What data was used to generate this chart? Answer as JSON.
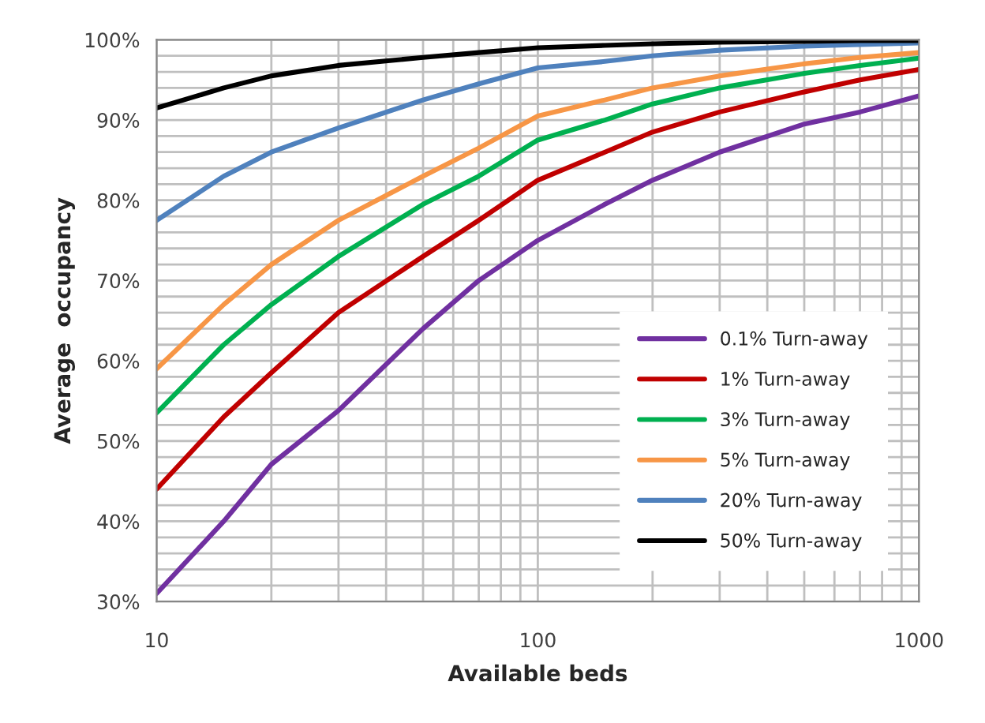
{
  "chart_data": {
    "type": "line",
    "xlabel": "Available beds",
    "ylabel": "Average  occupancy",
    "log": "x",
    "x": [
      10,
      15,
      20,
      30,
      50,
      70,
      100,
      150,
      200,
      300,
      500,
      700,
      1000
    ],
    "series": [
      {
        "name": "0.1% Turn-away",
        "color": "#7030a0",
        "values": [
          31,
          40,
          47.1,
          53.8,
          64,
          70,
          75,
          79.5,
          82.5,
          86,
          89.5,
          91,
          93
        ]
      },
      {
        "name": "1% Turn-away",
        "color": "#c00000",
        "values": [
          44,
          53,
          58.5,
          66,
          73,
          77.5,
          82.5,
          86,
          88.5,
          91,
          93.5,
          95,
          96.3
        ]
      },
      {
        "name": "3% Turn-away",
        "color": "#00b050",
        "values": [
          53.5,
          62,
          67,
          73,
          79.5,
          83,
          87.5,
          90,
          92,
          94,
          95.8,
          96.8,
          97.7
        ]
      },
      {
        "name": "5% Turn-away",
        "color": "#f79646",
        "values": [
          59,
          67,
          72,
          77.5,
          83,
          86.5,
          90.5,
          92.5,
          94,
          95.5,
          97,
          97.8,
          98.4
        ]
      },
      {
        "name": "20% Turn-away",
        "color": "#4f81bd",
        "values": [
          77.5,
          83,
          86,
          89,
          92.5,
          94.5,
          96.5,
          97.3,
          98,
          98.7,
          99.2,
          99.4,
          99.6
        ]
      },
      {
        "name": "50% Turn-away",
        "color": "#000000",
        "values": [
          91.5,
          94,
          95.5,
          96.8,
          97.8,
          98.4,
          99,
          99.3,
          99.5,
          99.7,
          99.8,
          99.9,
          99.9
        ]
      }
    ],
    "xlim": [
      10,
      1000
    ],
    "ylim": [
      30,
      100
    ],
    "xticks": [
      10,
      {
        "value": 20,
        "label": null
      },
      {
        "value": 30,
        "label": null
      },
      {
        "value": 40,
        "label": null
      },
      {
        "value": 50,
        "label": null
      },
      {
        "value": 60,
        "label": null
      },
      {
        "value": 70,
        "label": null
      },
      {
        "value": 80,
        "label": null
      },
      {
        "value": 90,
        "label": null
      },
      100,
      {
        "value": 200,
        "label": null
      },
      {
        "value": 300,
        "label": null
      },
      {
        "value": 400,
        "label": null
      },
      {
        "value": 500,
        "label": null
      },
      {
        "value": 600,
        "label": null
      },
      {
        "value": 700,
        "label": null
      },
      {
        "value": 800,
        "label": null
      },
      {
        "value": 900,
        "label": null
      },
      1000
    ],
    "yticks": [
      {
        "value": 30,
        "label": "30%"
      },
      {
        "value": 32,
        "label": null
      },
      {
        "value": 34,
        "label": null
      },
      {
        "value": 36,
        "label": null
      },
      {
        "value": 38,
        "label": null
      },
      {
        "value": 40,
        "label": "40%"
      },
      {
        "value": 42,
        "label": null
      },
      {
        "value": 44,
        "label": null
      },
      {
        "value": 46,
        "label": null
      },
      {
        "value": 48,
        "label": null
      },
      {
        "value": 50,
        "label": "50%"
      },
      {
        "value": 52,
        "label": null
      },
      {
        "value": 54,
        "label": null
      },
      {
        "value": 56,
        "label": null
      },
      {
        "value": 58,
        "label": null
      },
      {
        "value": 60,
        "label": "60%"
      },
      {
        "value": 62,
        "label": null
      },
      {
        "value": 64,
        "label": null
      },
      {
        "value": 66,
        "label": null
      },
      {
        "value": 68,
        "label": null
      },
      {
        "value": 70,
        "label": "70%"
      },
      {
        "value": 72,
        "label": null
      },
      {
        "value": 74,
        "label": null
      },
      {
        "value": 76,
        "label": null
      },
      {
        "value": 78,
        "label": null
      },
      {
        "value": 80,
        "label": "80%"
      },
      {
        "value": 82,
        "label": null
      },
      {
        "value": 84,
        "label": null
      },
      {
        "value": 86,
        "label": null
      },
      {
        "value": 88,
        "label": null
      },
      {
        "value": 90,
        "label": "90%"
      },
      {
        "value": 92,
        "label": null
      },
      {
        "value": 94,
        "label": null
      },
      {
        "value": 96,
        "label": null
      },
      {
        "value": 98,
        "label": null
      },
      {
        "value": 100,
        "label": "100%"
      }
    ],
    "grid": true,
    "legend": "lower right",
    "marker": "none",
    "line_style": "solid"
  }
}
